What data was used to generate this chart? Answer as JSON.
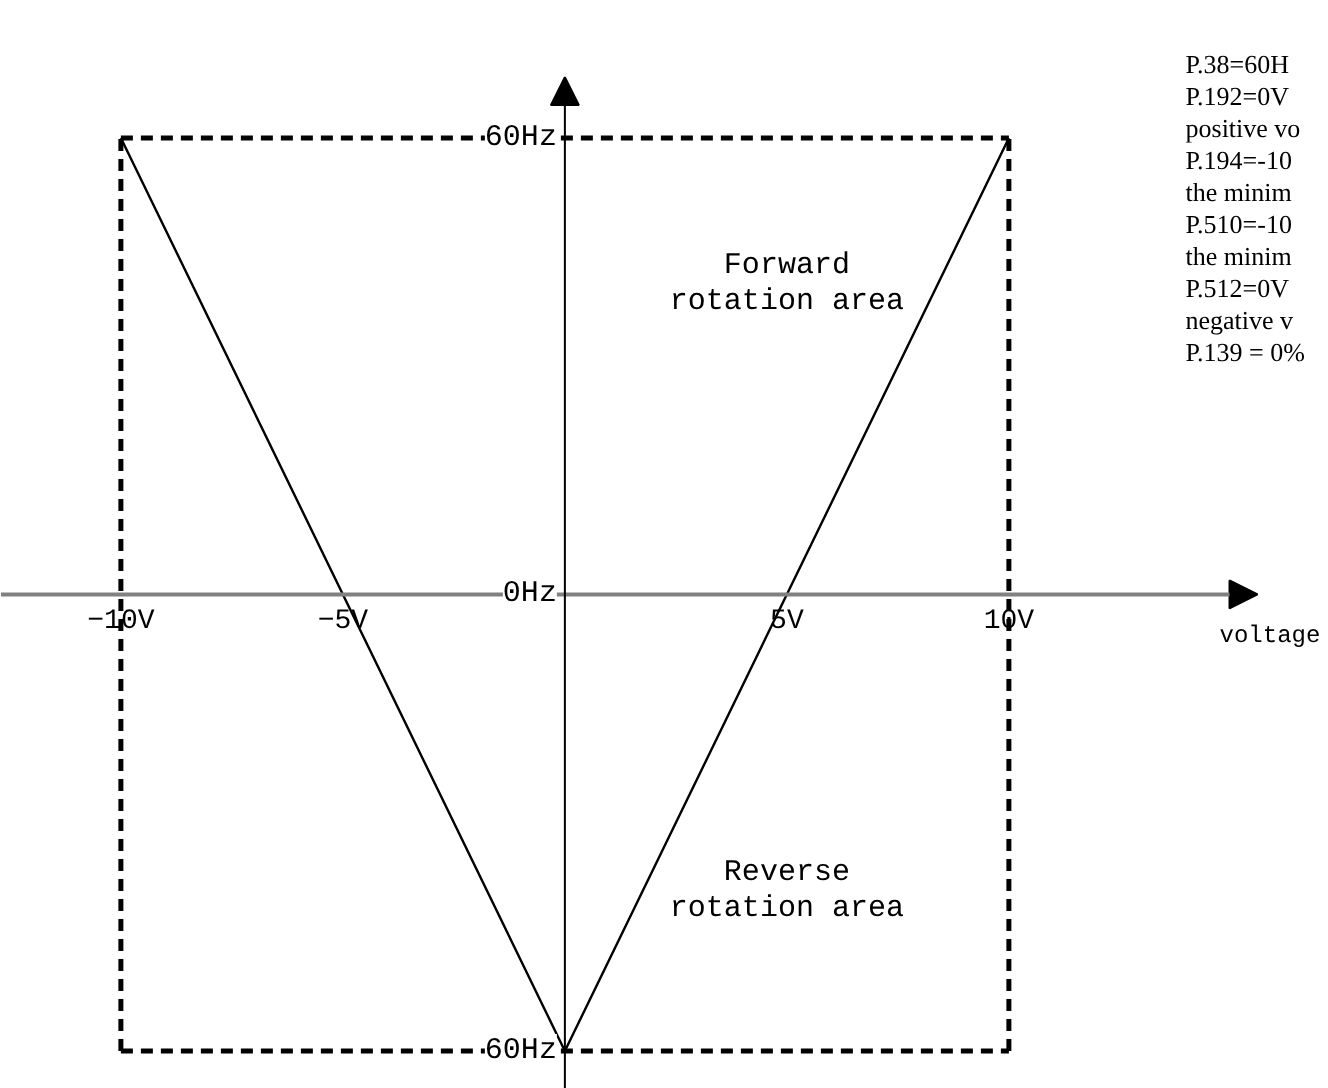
{
  "chart_data": {
    "type": "line",
    "xlabel": "voltage",
    "x": [
      -10,
      0,
      10
    ],
    "series": [
      {
        "color": "#000000",
        "values": [
          60,
          -60,
          60
        ]
      }
    ],
    "xlim": [
      -12.7,
      15.6
    ],
    "ylim": [
      -65,
      68
    ],
    "xticks": [
      {
        "value": -10,
        "label": "−10V"
      },
      {
        "value": -5,
        "label": "−5V"
      },
      {
        "value": 5,
        "label": "5V"
      },
      {
        "value": 10,
        "label": "10V"
      }
    ],
    "yticks": [
      {
        "value": 60,
        "label": "60Hz"
      },
      {
        "value": 0,
        "label": "0Hz"
      },
      {
        "value": -60,
        "label": "60Hz"
      }
    ],
    "ref_lines": [
      {
        "axis": "x",
        "value": -10,
        "color": "#000000",
        "line_style": "dashed"
      },
      {
        "axis": "x",
        "value": 10,
        "color": "#000000",
        "line_style": "dashed"
      },
      {
        "axis": "y",
        "value": 60,
        "color": "#000000",
        "line_style": "dashed"
      },
      {
        "axis": "y",
        "value": -60,
        "color": "#000000",
        "line_style": "dashed"
      }
    ],
    "annotations": [
      "Forward\nrotation area",
      "Reverse\nrotation area",
      "P.38=60H",
      "P.192=0V",
      "positive vo",
      "P.194=-10",
      "the minim",
      "P.510=-10",
      "the minim",
      "P.512=0V",
      "negative v",
      "P.139 = 0%"
    ],
    "grid": false,
    "line_style": "solid",
    "marker": "none"
  }
}
